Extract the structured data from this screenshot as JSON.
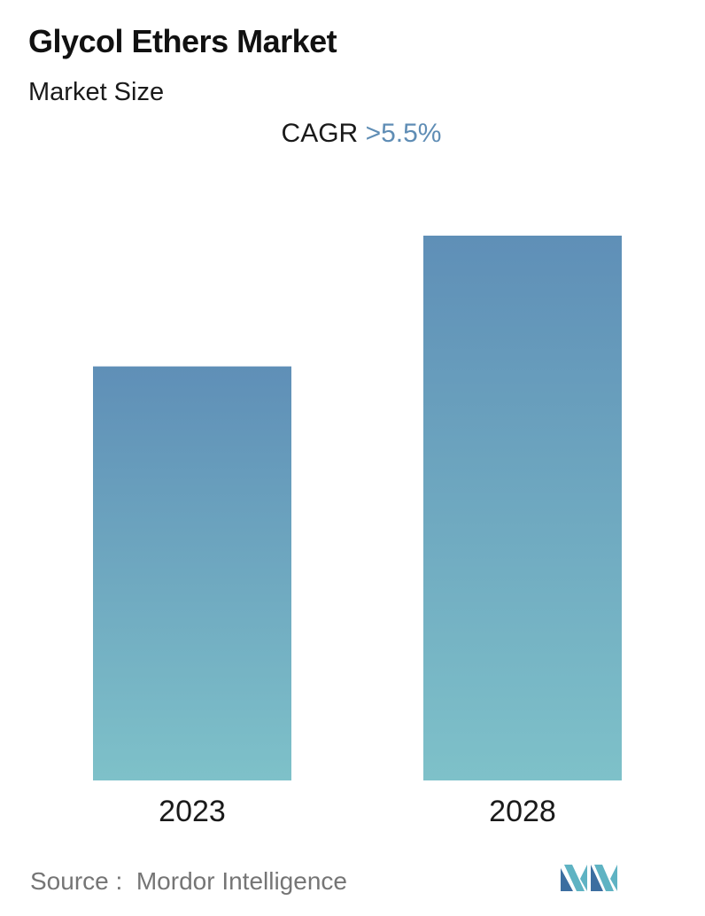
{
  "header": {
    "title": "Glycol Ethers Market",
    "subtitle": "Market Size"
  },
  "cagr": {
    "label": "CAGR",
    "value": ">5.5%"
  },
  "chart_data": {
    "type": "bar",
    "categories": [
      "2023",
      "2028"
    ],
    "values": [
      0.76,
      1.0
    ],
    "value_scale": "relative (no axis printed)",
    "ylim": [
      0,
      1
    ],
    "grid": false,
    "bar_gradient": {
      "top": "#5f8fb7",
      "bottom": "#7ec1c9"
    }
  },
  "footer": {
    "source_label": "Source :",
    "source_name": "Mordor Intelligence"
  },
  "logo": {
    "icon": "mordor-intelligence-logo-icon",
    "colors": [
      "#3c6ea0",
      "#5fb3c3"
    ]
  }
}
